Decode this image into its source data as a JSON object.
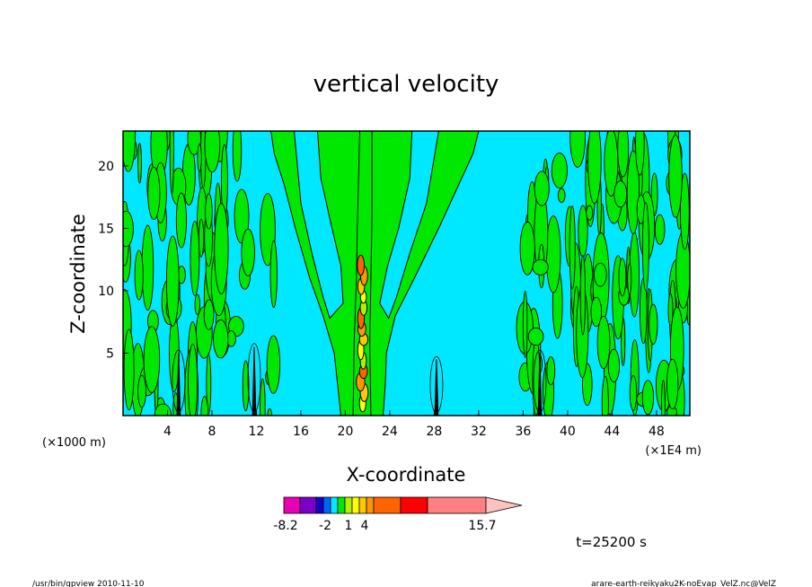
{
  "chart_data": {
    "type": "heatmap",
    "title": "vertical velocity",
    "xlabel": "X-coordinate",
    "ylabel": "Z-coordinate",
    "x_units_left": "(×1000 m)",
    "x_units_right": "(×1E4 m)",
    "xlim": [
      0,
      51
    ],
    "ylim": [
      0,
      22.8
    ],
    "x_ticks": [
      4,
      8,
      12,
      16,
      20,
      24,
      28,
      32,
      36,
      40,
      44,
      48
    ],
    "y_ticks": [
      5,
      10,
      15,
      20
    ],
    "background_color": "#00e8ff",
    "positive_color": "#00e800",
    "updraft_core_x": 21.5,
    "plumes": [
      {
        "x": 5,
        "top": 5.0
      },
      {
        "x": 11.8,
        "top": 5.5
      },
      {
        "x": 28.2,
        "top": 4.5
      },
      {
        "x": 37.5,
        "top": 5.0
      }
    ],
    "colorbar": {
      "segments": [
        {
          "color": "#e800b4"
        },
        {
          "color": "#7a00c8"
        },
        {
          "color": "#1600c8"
        },
        {
          "color": "#0064ff"
        },
        {
          "color": "#00e8ff"
        },
        {
          "color": "#00e800"
        },
        {
          "color": "#b4f000"
        },
        {
          "color": "#ffff00"
        },
        {
          "color": "#ffc800"
        },
        {
          "color": "#ff9600"
        },
        {
          "color": "#ff6400"
        },
        {
          "color": "#ff0000"
        },
        {
          "color": "#ff8080"
        },
        {
          "color": "#ffc0c0"
        }
      ],
      "labels": [
        "-8.2",
        "-2",
        "1",
        "4",
        "15.7"
      ]
    },
    "time_label": "t=25200 s"
  },
  "footer": {
    "left": "/usr/bin/gpview   2010-11-10",
    "right": "arare-earth-reikyaku2K-noEvap_VelZ.nc@VelZ"
  }
}
